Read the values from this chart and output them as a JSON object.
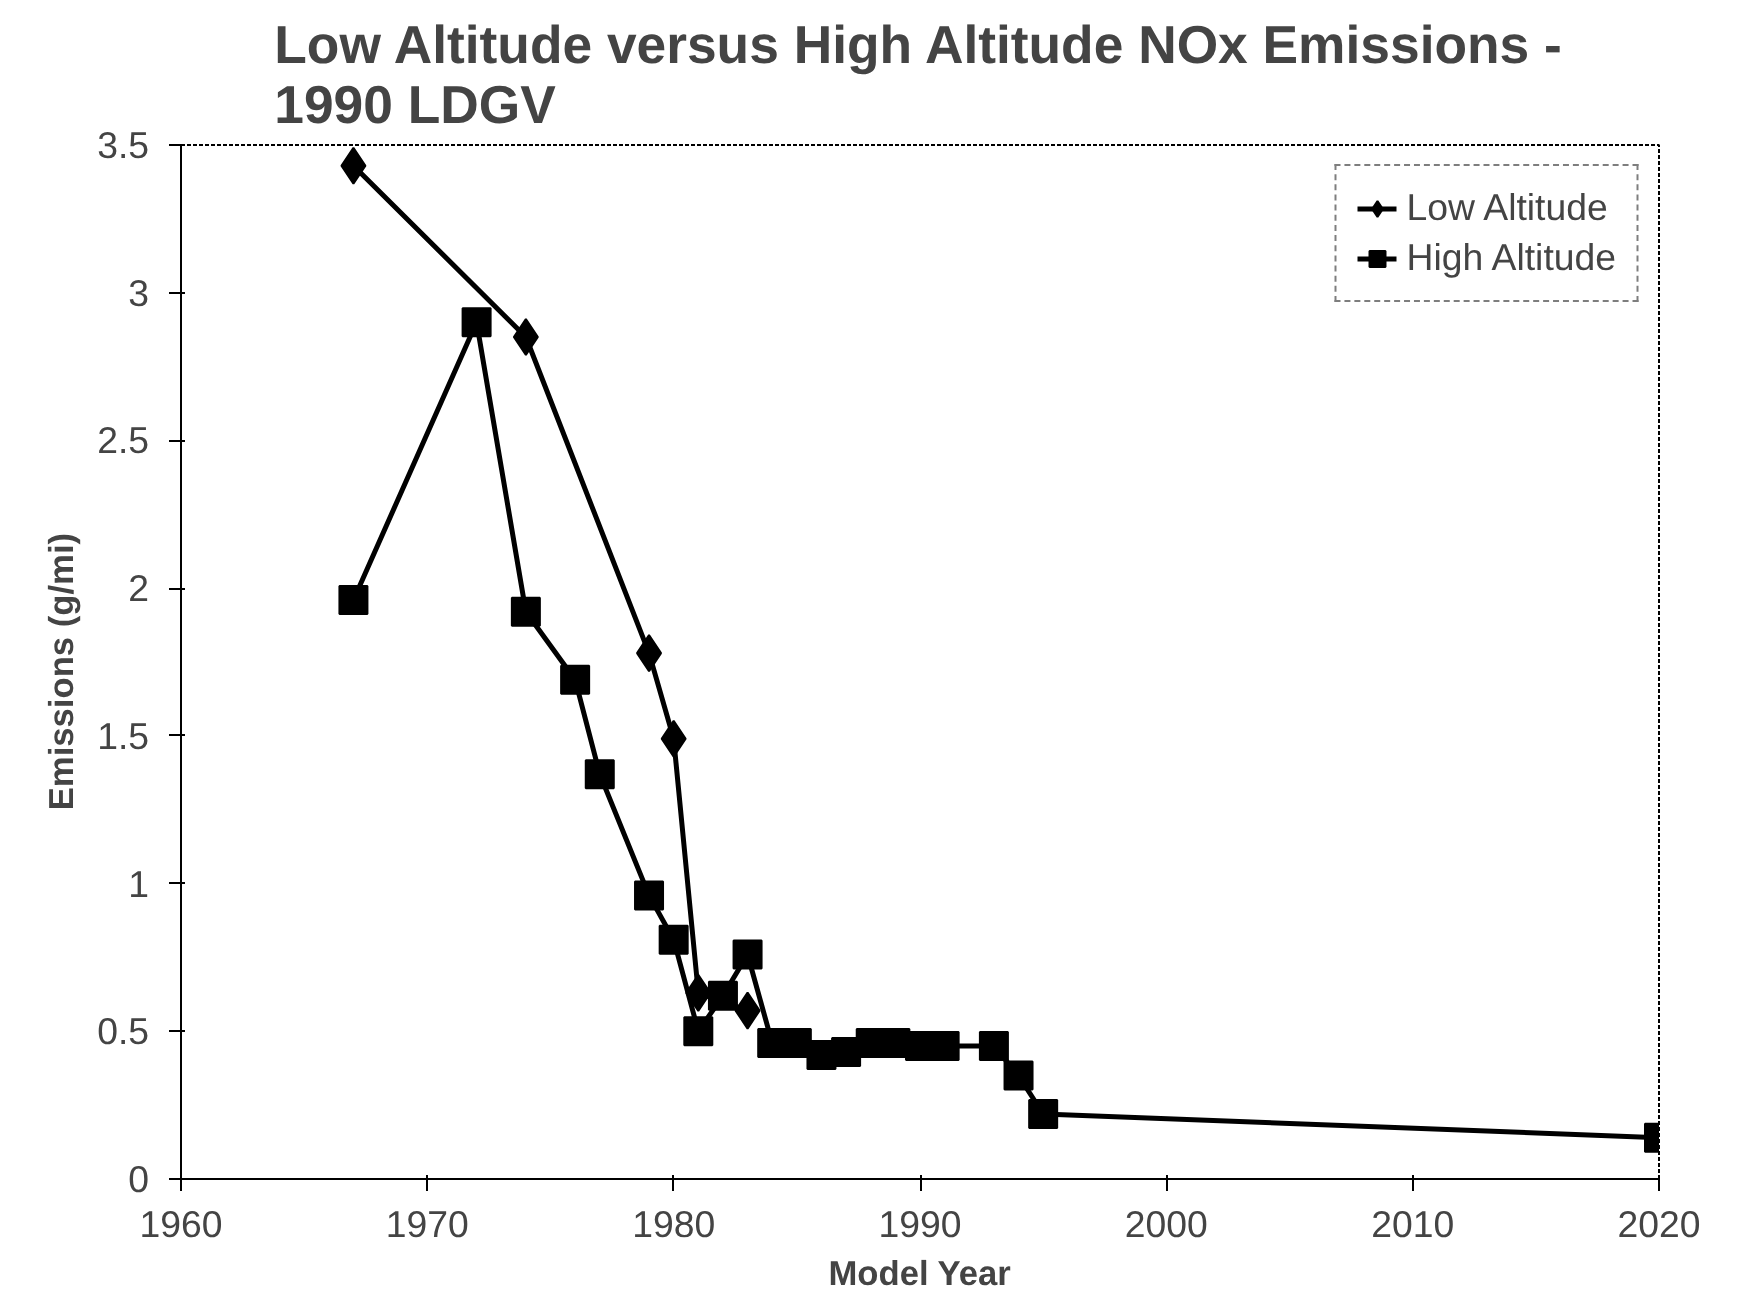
{
  "chart_data": {
    "type": "line",
    "title": "Low Altitude versus High Altitude NOx Emissions -\n1990 LDGV",
    "xlabel": "Model Year",
    "ylabel": "Emissions   (g/mi)",
    "xlim": [
      1960,
      2020
    ],
    "xticks": [
      1960,
      1970,
      1980,
      1990,
      2000,
      2010,
      2020
    ],
    "ylim": [
      0,
      3.5
    ],
    "yticks": [
      0,
      0.5,
      1,
      1.5,
      2,
      2.5,
      3,
      3.5
    ],
    "grid": false,
    "legend": "top right",
    "series": [
      {
        "name": "Low Altitude",
        "color": "#000000",
        "marker": "diamond",
        "x": [
          1967,
          1974,
          1979,
          1980,
          1981,
          1983
        ],
        "values": [
          3.43,
          2.85,
          1.78,
          1.49,
          0.63,
          0.57
        ]
      },
      {
        "name": "High Altitude",
        "color": "#000000",
        "marker": "square",
        "x": [
          1967,
          1972,
          1974,
          1976,
          1977,
          1979,
          1980,
          1981,
          1982,
          1983,
          1984,
          1985,
          1986,
          1987,
          1988,
          1989,
          1990,
          1991,
          1993,
          1994,
          1995,
          2020
        ],
        "values": [
          1.96,
          2.9,
          1.92,
          1.69,
          1.37,
          0.96,
          0.81,
          0.5,
          0.62,
          0.76,
          0.46,
          0.46,
          0.42,
          0.43,
          0.46,
          0.46,
          0.45,
          0.45,
          0.45,
          0.35,
          0.22,
          0.14
        ]
      }
    ]
  }
}
